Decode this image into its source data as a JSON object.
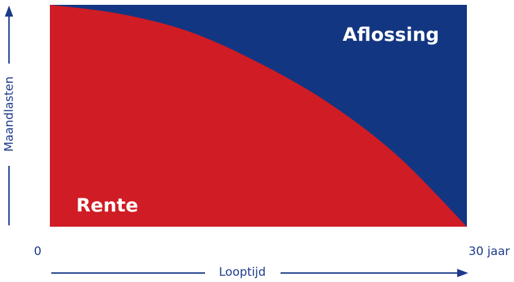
{
  "chart_data": {
    "type": "area",
    "title": "",
    "xlabel": "Looptijd",
    "ylabel": "Maandlasten",
    "x_ticks": [
      "0",
      "30 jaar"
    ],
    "xlim": [
      0,
      30
    ],
    "series": [
      {
        "name": "Rente",
        "x": [
          0,
          5,
          10,
          15,
          20,
          25,
          30
        ],
        "values": [
          1.0,
          0.96,
          0.88,
          0.74,
          0.56,
          0.32,
          0.0
        ]
      },
      {
        "name": "Aflossing",
        "x": [
          0,
          5,
          10,
          15,
          20,
          25,
          30
        ],
        "values": [
          0.0,
          0.04,
          0.12,
          0.26,
          0.44,
          0.68,
          1.0
        ]
      }
    ],
    "stacked": true,
    "grid": false,
    "legend": "none (labels inside areas)",
    "colors": {
      "rente": "#d01c24",
      "aflossing": "#133682",
      "axis": "#1b3a8a"
    }
  }
}
